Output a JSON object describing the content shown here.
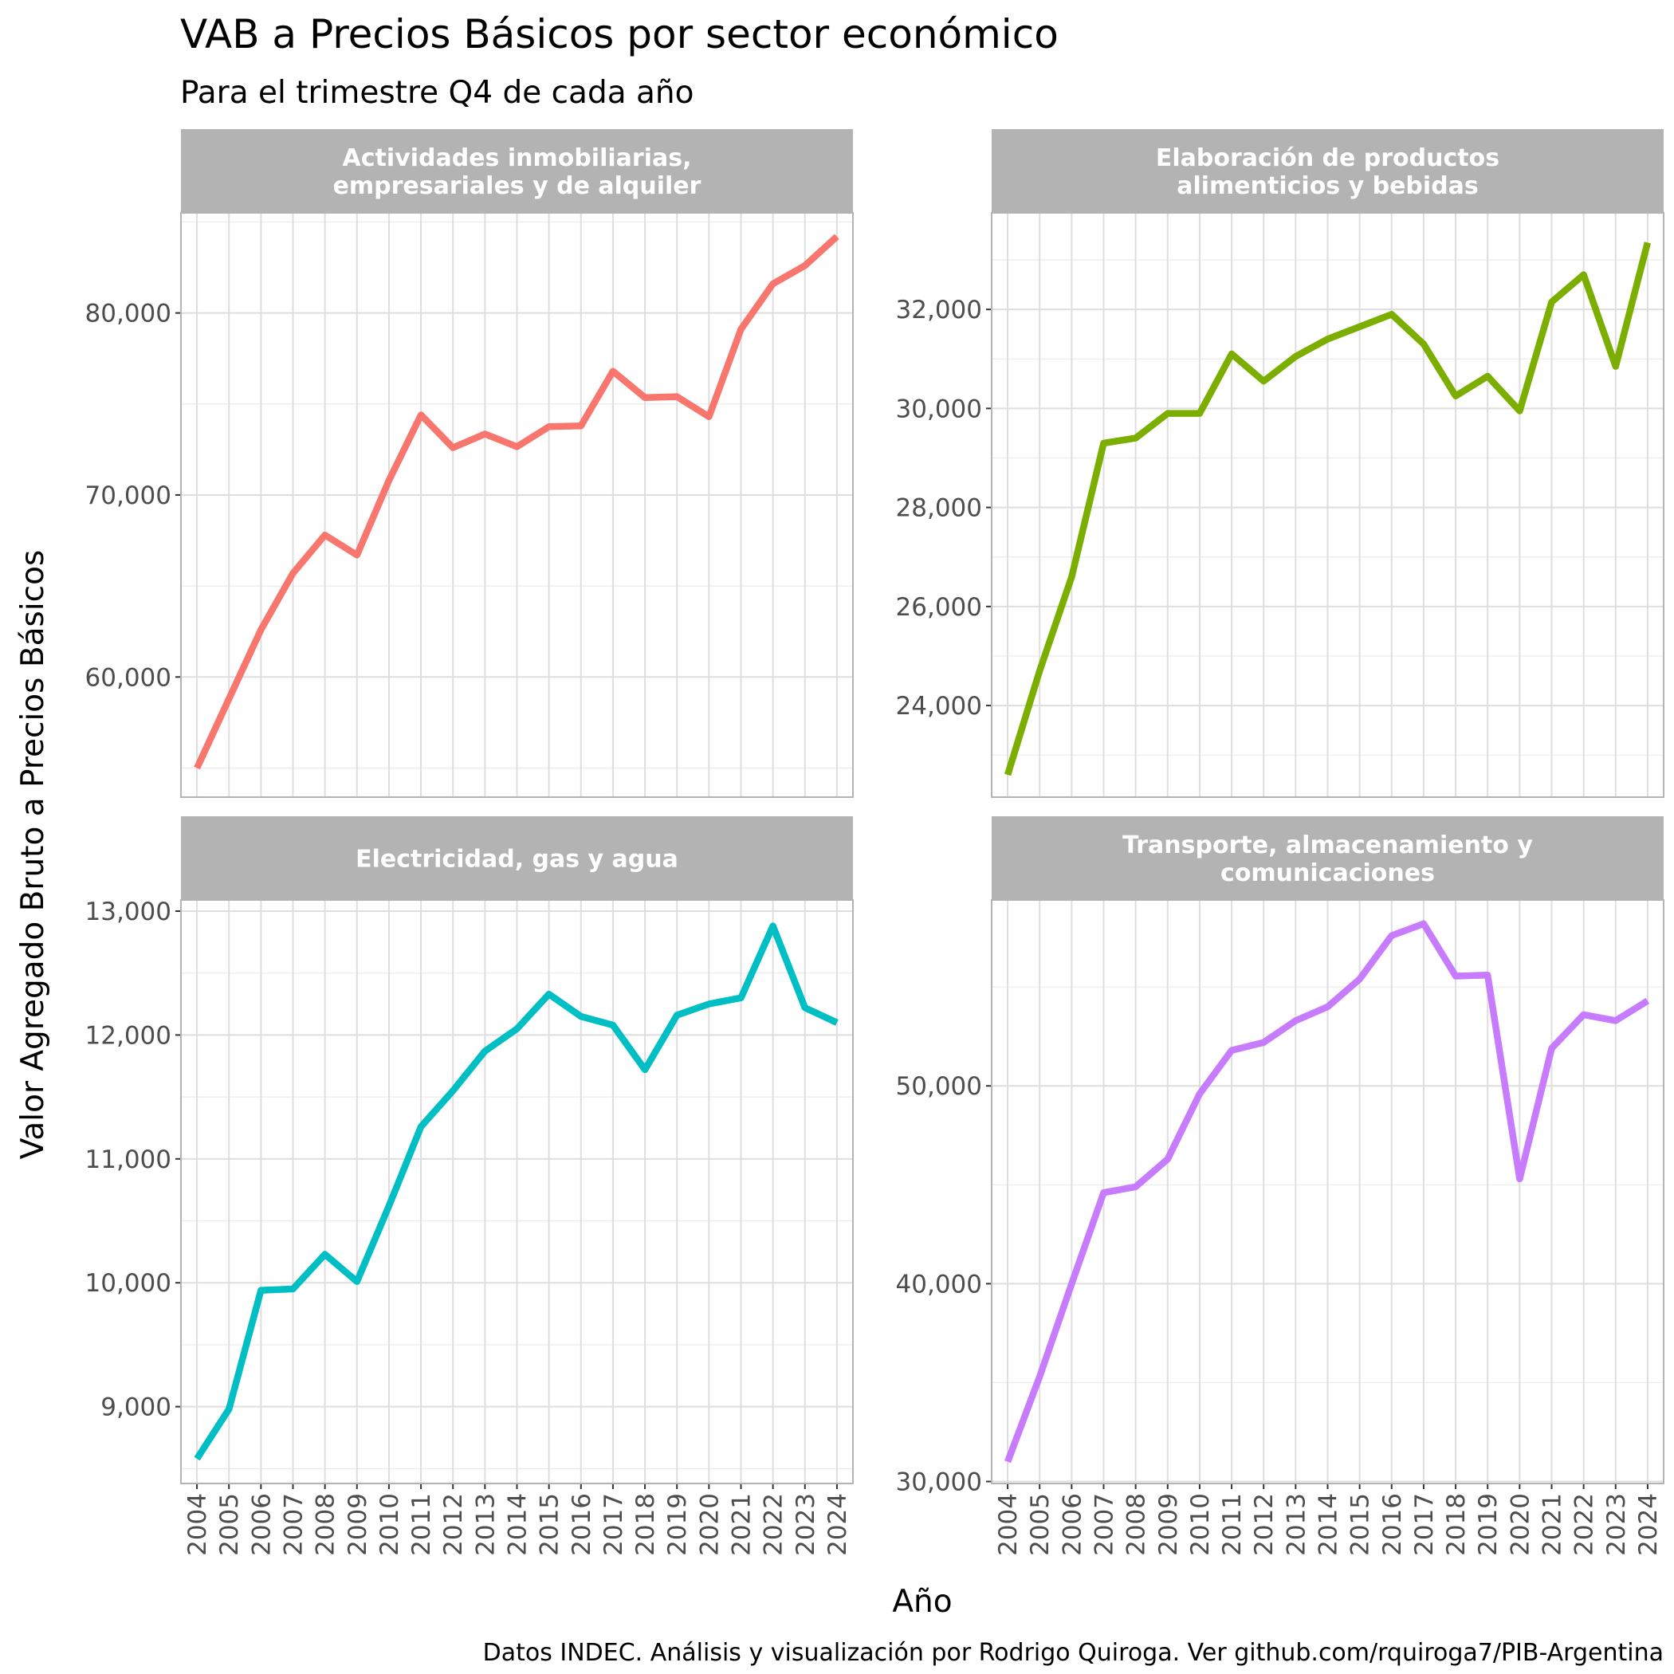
{
  "title": "VAB a Precios Básicos por sector económico",
  "subtitle": "Para el trimestre Q4 de cada año",
  "xlabel": "Año",
  "ylabel": "Valor Agregado Bruto a Precios Básicos",
  "caption": "Datos INDEC. Análisis y visualización por Rodrigo Quiroga. Ver github.com/rquiroga7/PIB-Argentina",
  "chart_data": [
    {
      "type": "line",
      "facet": "Actividades inmobiliarias, empresariales y de alquiler",
      "strip_lines": [
        "Actividades inmobiliarias,",
        "empresariales y de alquiler"
      ],
      "color": "#F8766D",
      "x": [
        2004,
        2005,
        2006,
        2007,
        2008,
        2009,
        2010,
        2011,
        2012,
        2013,
        2014,
        2015,
        2016,
        2017,
        2018,
        2019,
        2020,
        2021,
        2022,
        2023,
        2024
      ],
      "y": [
        55000,
        58800,
        62600,
        65700,
        67800,
        66700,
        70800,
        74400,
        72600,
        73350,
        72650,
        73750,
        73800,
        76800,
        75350,
        75400,
        74300,
        79100,
        81600,
        82600,
        84200
      ],
      "ylim": [
        53400,
        85500
      ],
      "yticks": [
        60000,
        70000,
        80000
      ],
      "ytick_labels": [
        "60,000",
        "70,000",
        "80,000"
      ]
    },
    {
      "type": "line",
      "facet": "Elaboración de productos alimenticios y bebidas",
      "strip_lines": [
        "Elaboración de productos",
        "alimenticios y bebidas"
      ],
      "color": "#7CAE00",
      "x": [
        2004,
        2005,
        2006,
        2007,
        2008,
        2009,
        2010,
        2011,
        2012,
        2013,
        2014,
        2015,
        2016,
        2017,
        2018,
        2019,
        2020,
        2021,
        2022,
        2023,
        2024
      ],
      "y": [
        22600,
        24700,
        26600,
        29300,
        29400,
        29900,
        29900,
        31100,
        30550,
        31050,
        31400,
        31650,
        31900,
        31300,
        30250,
        30650,
        29950,
        32150,
        32700,
        30850,
        33350
      ],
      "ylim": [
        22150,
        33950
      ],
      "yticks": [
        24000,
        26000,
        28000,
        30000,
        32000
      ],
      "ytick_labels": [
        "24,000",
        "26,000",
        "28,000",
        "30,000",
        "32,000"
      ]
    },
    {
      "type": "line",
      "facet": "Electricidad, gas y agua",
      "strip_lines": [
        "Electricidad, gas y agua"
      ],
      "color": "#00BFC4",
      "x": [
        2004,
        2005,
        2006,
        2007,
        2008,
        2009,
        2010,
        2011,
        2012,
        2013,
        2014,
        2015,
        2016,
        2017,
        2018,
        2019,
        2020,
        2021,
        2022,
        2023,
        2024
      ],
      "y": [
        8580,
        8980,
        9940,
        9950,
        10230,
        10010,
        10620,
        11260,
        11550,
        11870,
        12050,
        12330,
        12150,
        12080,
        11720,
        12160,
        12250,
        12300,
        12880,
        12220,
        12100
      ],
      "ylim": [
        8380,
        13090
      ],
      "yticks": [
        9000,
        10000,
        11000,
        12000,
        13000
      ],
      "ytick_labels": [
        "9,000",
        "10,000",
        "11,000",
        "12,000",
        "13,000"
      ]
    },
    {
      "type": "line",
      "facet": "Transporte, almacenamiento y comunicaciones",
      "strip_lines": [
        "Transporte, almacenamiento y",
        "comunicaciones"
      ],
      "color": "#C77CFF",
      "x": [
        2004,
        2005,
        2006,
        2007,
        2008,
        2009,
        2010,
        2011,
        2012,
        2013,
        2014,
        2015,
        2016,
        2017,
        2018,
        2019,
        2020,
        2021,
        2022,
        2023,
        2024
      ],
      "y": [
        31000,
        35300,
        40000,
        44600,
        44900,
        46300,
        49600,
        51800,
        52200,
        53300,
        54000,
        55400,
        57600,
        58200,
        55550,
        55600,
        45300,
        51900,
        53600,
        53300,
        54300
      ],
      "ylim": [
        29900,
        59400
      ],
      "yticks": [
        30000,
        40000,
        50000
      ],
      "ytick_labels": [
        "30,000",
        "40,000",
        "50,000"
      ]
    }
  ]
}
